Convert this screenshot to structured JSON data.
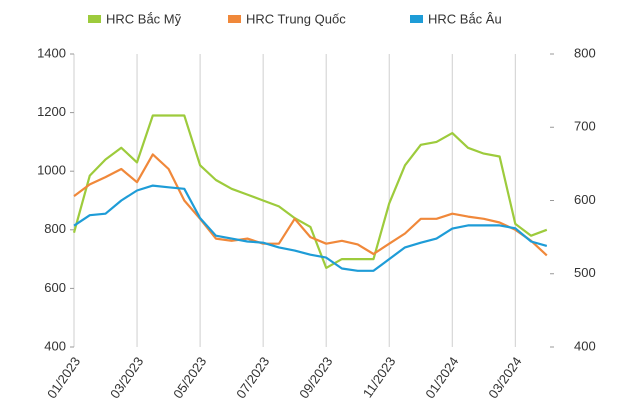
{
  "chart_data": {
    "type": "line",
    "x": [
      0,
      0.5,
      1,
      1.5,
      2,
      2.5,
      3,
      3.5,
      4,
      4.5,
      5,
      5.5,
      6,
      6.5,
      7,
      7.5,
      8,
      8.5,
      9,
      9.5,
      10,
      10.5,
      11,
      11.5,
      12,
      12.5,
      13,
      13.5,
      14,
      14.5,
      15
    ],
    "xlim": [
      0,
      15.1
    ],
    "xticks": [
      {
        "value": 0,
        "label": "01/2023"
      },
      {
        "value": 2,
        "label": "03/2023"
      },
      {
        "value": 4,
        "label": "05/2023"
      },
      {
        "value": 6,
        "label": "07/2023"
      },
      {
        "value": 8,
        "label": "09/2023"
      },
      {
        "value": 10,
        "label": "11/2023"
      },
      {
        "value": 12,
        "label": "01/2024"
      },
      {
        "value": 14,
        "label": "03/2024"
      }
    ],
    "ylim": [
      400,
      1400
    ],
    "yticks": [
      400,
      600,
      800,
      1000,
      1200,
      1400
    ],
    "y2lim": [
      400,
      800
    ],
    "y2ticks": [
      400,
      500,
      600,
      700,
      800
    ],
    "grid": "x",
    "legend": "top",
    "series": [
      {
        "name": "HRC Bắc Mỹ",
        "color": "#9dcb3c",
        "axis": "y",
        "values": [
          790,
          985,
          1040,
          1080,
          1030,
          1190,
          1190,
          1190,
          1020,
          970,
          940,
          920,
          900,
          880,
          840,
          810,
          670,
          700,
          700,
          700,
          890,
          1020,
          1090,
          1100,
          1130,
          1080,
          1060,
          1050,
          820,
          780,
          800
        ]
      },
      {
        "name": "HRC Trung Quốc",
        "color": "#f0883a",
        "axis": "y2",
        "values": [
          606,
          622,
          632,
          643,
          625,
          663,
          643,
          600,
          575,
          548,
          545,
          548,
          541,
          541,
          575,
          550,
          541,
          545,
          540,
          527,
          541,
          555,
          575,
          575,
          582,
          578,
          575,
          570,
          560,
          545,
          525
        ]
      },
      {
        "name": "HRC Bắc Âu",
        "color": "#1e9cd7",
        "axis": "y",
        "values": [
          814,
          850,
          855,
          900,
          934,
          951,
          945,
          940,
          840,
          780,
          770,
          760,
          756,
          740,
          729,
          715,
          705,
          668,
          660,
          660,
          700,
          740,
          756,
          770,
          804,
          815,
          815,
          815,
          805,
          760,
          745
        ]
      }
    ]
  }
}
